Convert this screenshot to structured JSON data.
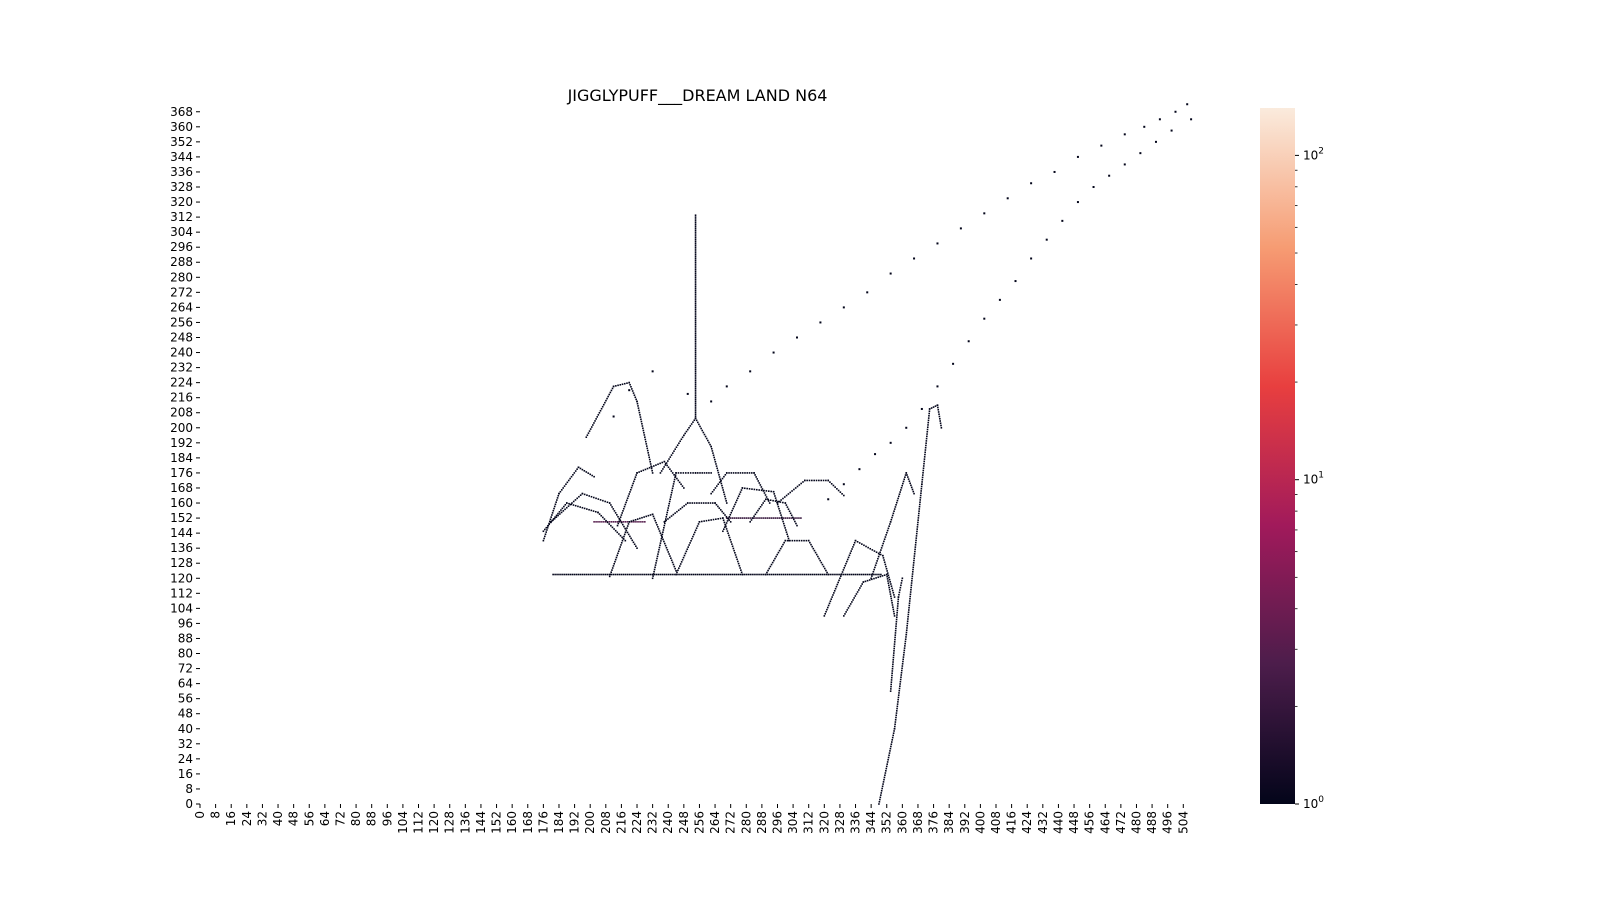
{
  "chart_data": {
    "type": "heatmap",
    "title": "JIGGLYPUFF___DREAM LAND N64",
    "xlabel": "",
    "ylabel": "",
    "xlim": [
      0,
      510
    ],
    "ylim": [
      0,
      370
    ],
    "x_ticks": [
      0,
      8,
      16,
      24,
      32,
      40,
      48,
      56,
      64,
      72,
      80,
      88,
      96,
      104,
      112,
      120,
      128,
      136,
      144,
      152,
      160,
      168,
      176,
      184,
      192,
      200,
      208,
      216,
      224,
      232,
      240,
      248,
      256,
      264,
      272,
      280,
      288,
      296,
      304,
      312,
      320,
      328,
      336,
      344,
      352,
      360,
      368,
      376,
      384,
      392,
      400,
      408,
      416,
      424,
      432,
      440,
      448,
      456,
      464,
      472,
      480,
      488,
      496,
      504
    ],
    "y_ticks": [
      0,
      8,
      16,
      24,
      32,
      40,
      48,
      56,
      64,
      72,
      80,
      88,
      96,
      104,
      112,
      120,
      128,
      136,
      144,
      152,
      160,
      168,
      176,
      184,
      192,
      200,
      208,
      216,
      224,
      232,
      240,
      248,
      256,
      264,
      272,
      280,
      288,
      296,
      304,
      312,
      320,
      328,
      336,
      344,
      352,
      360,
      368
    ],
    "colorbar": {
      "scale": "log",
      "range": [
        1,
        140
      ],
      "labels": [
        {
          "base": "10",
          "exp": "0",
          "value": 1
        },
        {
          "base": "10",
          "exp": "1",
          "value": 10
        },
        {
          "base": "10",
          "exp": "2",
          "value": 100
        }
      ],
      "colors": [
        "#03051a",
        "#4c1d4b",
        "#a11a5b",
        "#e83f3f",
        "#f69c73",
        "#faebdd"
      ]
    },
    "grid": false,
    "series": [
      {
        "kind": "line",
        "count": 1,
        "points": [
          [
            181,
            122
          ],
          [
            349,
            122
          ]
        ]
      },
      {
        "kind": "line",
        "count": 3,
        "points": [
          [
            202,
            150
          ],
          [
            228,
            150
          ]
        ]
      },
      {
        "kind": "line",
        "count": 2,
        "points": [
          [
            270,
            152
          ],
          [
            308,
            152
          ]
        ]
      },
      {
        "kind": "line",
        "count": 1,
        "points": [
          [
            254,
            205
          ],
          [
            254,
            313
          ]
        ]
      },
      {
        "kind": "arc",
        "count": 1,
        "points": [
          [
            198,
            195
          ],
          [
            212,
            222
          ],
          [
            220,
            224
          ],
          [
            224,
            214
          ],
          [
            232,
            176
          ]
        ]
      },
      {
        "kind": "arc",
        "count": 1,
        "points": [
          [
            176,
            140
          ],
          [
            184,
            165
          ],
          [
            194,
            179
          ],
          [
            202,
            174
          ]
        ]
      },
      {
        "kind": "arc",
        "count": 1,
        "points": [
          [
            176,
            145
          ],
          [
            188,
            160
          ],
          [
            204,
            155
          ],
          [
            218,
            140
          ]
        ]
      },
      {
        "kind": "arc",
        "count": 1,
        "points": [
          [
            180,
            150
          ],
          [
            196,
            165
          ],
          [
            210,
            160
          ],
          [
            224,
            136
          ]
        ]
      },
      {
        "kind": "arc",
        "count": 1,
        "points": [
          [
            214,
            148
          ],
          [
            224,
            176
          ],
          [
            238,
            182
          ],
          [
            248,
            168
          ]
        ]
      },
      {
        "kind": "arc",
        "count": 1,
        "points": [
          [
            232,
            120
          ],
          [
            244,
            176
          ],
          [
            254,
            176
          ],
          [
            262,
            176
          ]
        ]
      },
      {
        "kind": "arc",
        "count": 1,
        "points": [
          [
            236,
            176
          ],
          [
            248,
            196
          ],
          [
            254,
            205
          ],
          [
            262,
            190
          ],
          [
            270,
            160
          ]
        ]
      },
      {
        "kind": "arc",
        "count": 1,
        "points": [
          [
            238,
            150
          ],
          [
            250,
            160
          ],
          [
            264,
            160
          ],
          [
            272,
            150
          ]
        ]
      },
      {
        "kind": "arc",
        "count": 1,
        "points": [
          [
            262,
            165
          ],
          [
            270,
            176
          ],
          [
            284,
            176
          ],
          [
            292,
            160
          ]
        ]
      },
      {
        "kind": "arc",
        "count": 1,
        "points": [
          [
            268,
            145
          ],
          [
            278,
            168
          ],
          [
            294,
            166
          ],
          [
            302,
            140
          ]
        ]
      },
      {
        "kind": "arc",
        "count": 1,
        "points": [
          [
            282,
            150
          ],
          [
            290,
            162
          ],
          [
            300,
            160
          ],
          [
            306,
            148
          ]
        ]
      },
      {
        "kind": "arc",
        "count": 1,
        "points": [
          [
            296,
            160
          ],
          [
            310,
            172
          ],
          [
            322,
            172
          ],
          [
            330,
            164
          ]
        ]
      },
      {
        "kind": "arc",
        "count": 1,
        "points": [
          [
            320,
            100
          ],
          [
            336,
            140
          ],
          [
            350,
            132
          ],
          [
            356,
            110
          ]
        ]
      },
      {
        "kind": "arc",
        "count": 1,
        "points": [
          [
            330,
            100
          ],
          [
            340,
            118
          ],
          [
            352,
            122
          ],
          [
            356,
            100
          ]
        ]
      },
      {
        "kind": "arc",
        "count": 1,
        "points": [
          [
            344,
            120
          ],
          [
            354,
            150
          ],
          [
            362,
            176
          ],
          [
            366,
            165
          ]
        ]
      },
      {
        "kind": "arc",
        "count": 1,
        "points": [
          [
            348,
            0
          ],
          [
            356,
            40
          ],
          [
            362,
            90
          ],
          [
            370,
            170
          ],
          [
            374,
            210
          ],
          [
            378,
            212
          ],
          [
            380,
            200
          ]
        ]
      },
      {
        "kind": "arc",
        "count": 1,
        "points": [
          [
            354,
            60
          ],
          [
            358,
            110
          ],
          [
            360,
            120
          ]
        ]
      },
      {
        "kind": "arc",
        "count": 1,
        "points": [
          [
            210,
            121
          ],
          [
            220,
            150
          ],
          [
            232,
            154
          ],
          [
            244,
            124
          ]
        ]
      },
      {
        "kind": "arc",
        "count": 1,
        "points": [
          [
            244,
            122
          ],
          [
            256,
            150
          ],
          [
            268,
            152
          ],
          [
            278,
            122
          ]
        ]
      },
      {
        "kind": "arc",
        "count": 1,
        "points": [
          [
            290,
            122
          ],
          [
            300,
            140
          ],
          [
            312,
            140
          ],
          [
            322,
            122
          ]
        ]
      },
      {
        "kind": "scatter",
        "count": 1,
        "points": [
          [
            212,
            206
          ],
          [
            220,
            220
          ],
          [
            232,
            230
          ],
          [
            250,
            218
          ],
          [
            262,
            214
          ],
          [
            270,
            222
          ],
          [
            282,
            230
          ],
          [
            294,
            240
          ],
          [
            306,
            248
          ],
          [
            318,
            256
          ],
          [
            330,
            264
          ],
          [
            342,
            272
          ],
          [
            354,
            282
          ],
          [
            366,
            290
          ],
          [
            378,
            298
          ],
          [
            390,
            306
          ],
          [
            402,
            314
          ],
          [
            414,
            322
          ],
          [
            426,
            330
          ],
          [
            438,
            336
          ],
          [
            450,
            344
          ],
          [
            462,
            350
          ],
          [
            474,
            356
          ],
          [
            484,
            360
          ],
          [
            492,
            364
          ],
          [
            500,
            368
          ],
          [
            506,
            372
          ]
        ]
      },
      {
        "kind": "scatter",
        "count": 1,
        "points": [
          [
            322,
            162
          ],
          [
            330,
            170
          ],
          [
            338,
            178
          ],
          [
            346,
            186
          ],
          [
            354,
            192
          ],
          [
            362,
            200
          ],
          [
            370,
            210
          ],
          [
            378,
            222
          ],
          [
            386,
            234
          ],
          [
            394,
            246
          ],
          [
            402,
            258
          ],
          [
            410,
            268
          ],
          [
            418,
            278
          ],
          [
            426,
            290
          ],
          [
            434,
            300
          ],
          [
            442,
            310
          ],
          [
            450,
            320
          ],
          [
            458,
            328
          ],
          [
            466,
            334
          ],
          [
            474,
            340
          ],
          [
            482,
            346
          ],
          [
            490,
            352
          ],
          [
            498,
            358
          ],
          [
            508,
            364
          ]
        ]
      }
    ]
  }
}
